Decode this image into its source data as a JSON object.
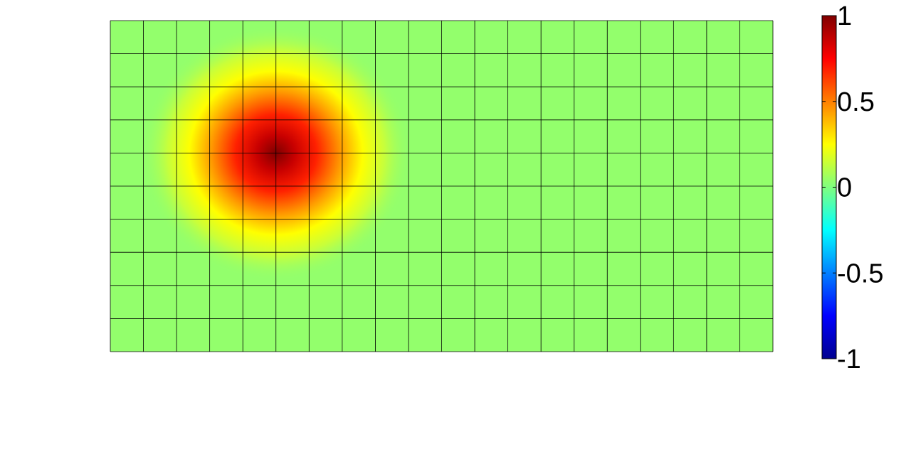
{
  "chart_data": {
    "type": "heatmap",
    "title": "",
    "xlabel": "",
    "ylabel": "",
    "grid": true,
    "mesh": {
      "columns": 20,
      "rows": 10
    },
    "peak": {
      "value": 1,
      "column": 5,
      "row": 4
    },
    "colorbar": {
      "range": [
        -1,
        1
      ],
      "colormap": "jet",
      "ticks": [
        {
          "value": 1,
          "label": "1"
        },
        {
          "value": 0.5,
          "label": "0.5"
        },
        {
          "value": 0,
          "label": "0"
        },
        {
          "value": -0.5,
          "label": "-0.5"
        },
        {
          "value": -1,
          "label": "-1"
        }
      ]
    }
  }
}
